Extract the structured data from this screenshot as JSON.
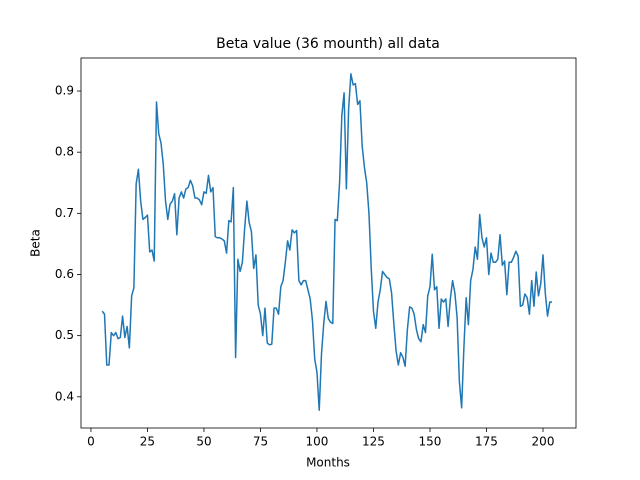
{
  "chart_data": {
    "type": "line",
    "title": "Beta value (36 mounth) all data",
    "xlabel": "Months",
    "ylabel": "Beta",
    "color": "#1f77b4",
    "x": [
      5,
      6,
      7,
      8,
      9,
      10,
      11,
      12,
      13,
      14,
      15,
      16,
      17,
      18,
      19,
      20,
      21,
      22,
      23,
      24,
      25,
      26,
      27,
      28,
      29,
      30,
      31,
      32,
      33,
      34,
      35,
      36,
      37,
      38,
      39,
      40,
      41,
      42,
      43,
      44,
      45,
      46,
      47,
      48,
      49,
      50,
      51,
      52,
      53,
      54,
      55,
      56,
      57,
      58,
      59,
      60,
      61,
      62,
      63,
      64,
      65,
      66,
      67,
      68,
      69,
      70,
      71,
      72,
      73,
      74,
      75,
      76,
      77,
      78,
      79,
      80,
      81,
      82,
      83,
      84,
      85,
      86,
      87,
      88,
      89,
      90,
      91,
      92,
      93,
      94,
      95,
      96,
      97,
      98,
      99,
      100,
      101,
      102,
      103,
      104,
      105,
      106,
      107,
      108,
      109,
      110,
      111,
      112,
      113,
      114,
      115,
      116,
      117,
      118,
      119,
      120,
      121,
      122,
      123,
      124,
      125,
      126,
      127,
      128,
      129,
      130,
      131,
      132,
      133,
      134,
      135,
      136,
      137,
      138,
      139,
      140,
      141,
      142,
      143,
      144,
      145,
      146,
      147,
      148,
      149,
      150,
      151,
      152,
      153,
      154,
      155,
      156,
      157,
      158,
      159,
      160,
      161,
      162,
      163,
      164,
      165,
      166,
      167,
      168,
      169,
      170,
      171,
      172,
      173,
      174,
      175,
      176,
      177,
      178,
      179,
      180,
      181,
      182,
      183,
      184,
      185,
      186,
      187,
      188,
      189,
      190,
      191,
      192,
      193,
      194,
      195,
      196,
      197,
      198,
      199,
      200,
      201,
      202,
      203,
      204
    ],
    "values": [
      0.54,
      0.535,
      0.452,
      0.452,
      0.505,
      0.5,
      0.505,
      0.495,
      0.497,
      0.532,
      0.497,
      0.515,
      0.48,
      0.565,
      0.578,
      0.748,
      0.772,
      0.72,
      0.69,
      0.693,
      0.697,
      0.637,
      0.64,
      0.622,
      0.882,
      0.83,
      0.815,
      0.78,
      0.72,
      0.69,
      0.715,
      0.72,
      0.732,
      0.665,
      0.725,
      0.735,
      0.725,
      0.74,
      0.742,
      0.754,
      0.745,
      0.725,
      0.725,
      0.722,
      0.714,
      0.735,
      0.733,
      0.762,
      0.735,
      0.742,
      0.662,
      0.66,
      0.66,
      0.658,
      0.655,
      0.635,
      0.688,
      0.686,
      0.742,
      0.464,
      0.625,
      0.605,
      0.62,
      0.675,
      0.72,
      0.685,
      0.67,
      0.61,
      0.632,
      0.55,
      0.535,
      0.5,
      0.545,
      0.488,
      0.485,
      0.486,
      0.545,
      0.545,
      0.535,
      0.58,
      0.59,
      0.62,
      0.655,
      0.64,
      0.673,
      0.668,
      0.672,
      0.59,
      0.583,
      0.59,
      0.59,
      0.575,
      0.56,
      0.525,
      0.462,
      0.44,
      0.378,
      0.47,
      0.52,
      0.556,
      0.528,
      0.522,
      0.52,
      0.69,
      0.688,
      0.75,
      0.86,
      0.897,
      0.74,
      0.87,
      0.928,
      0.91,
      0.912,
      0.878,
      0.884,
      0.81,
      0.775,
      0.75,
      0.7,
      0.61,
      0.54,
      0.512,
      0.555,
      0.575,
      0.605,
      0.6,
      0.595,
      0.593,
      0.57,
      0.52,
      0.475,
      0.452,
      0.472,
      0.465,
      0.45,
      0.51,
      0.547,
      0.545,
      0.535,
      0.51,
      0.495,
      0.49,
      0.518,
      0.505,
      0.565,
      0.58,
      0.633,
      0.575,
      0.58,
      0.512,
      0.56,
      0.555,
      0.56,
      0.515,
      0.56,
      0.59,
      0.57,
      0.53,
      0.425,
      0.382,
      0.48,
      0.562,
      0.518,
      0.59,
      0.608,
      0.645,
      0.625,
      0.698,
      0.66,
      0.645,
      0.66,
      0.6,
      0.635,
      0.62,
      0.62,
      0.625,
      0.665,
      0.615,
      0.622,
      0.567,
      0.62,
      0.62,
      0.628,
      0.638,
      0.63,
      0.548,
      0.55,
      0.568,
      0.562,
      0.535,
      0.59,
      0.548,
      0.604,
      0.565,
      0.585,
      0.632,
      0.57,
      0.532,
      0.555,
      0.555
    ],
    "xlim": [
      -4.4,
      214.6
    ],
    "xticks": [
      0,
      25,
      50,
      75,
      100,
      125,
      150,
      175,
      200
    ],
    "ylim": [
      0.349,
      0.954
    ],
    "yticks": [
      0.4,
      0.5,
      0.6,
      0.7,
      0.8,
      0.9
    ]
  }
}
